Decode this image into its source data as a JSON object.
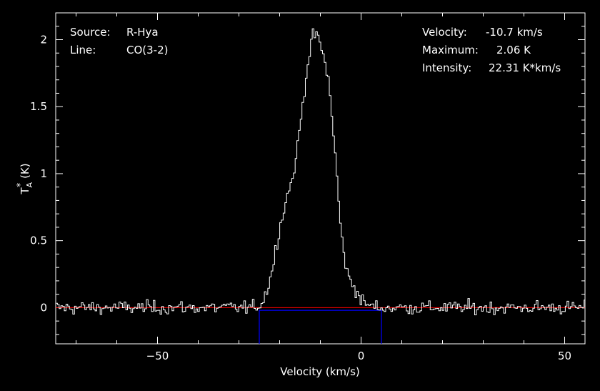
{
  "info_left": {
    "source_label": "Source:",
    "source_value": "R-Hya",
    "line_label": "Line:",
    "line_value": "CO(3-2)"
  },
  "info_right": {
    "velocity_label": "Velocity:",
    "velocity_value": "-10.7 km/s",
    "maximum_label": "Maximum:",
    "maximum_value": "2.06 K",
    "intensity_label": "Intensity:",
    "intensity_value": "22.31 K*km/s"
  },
  "chart_data": {
    "type": "line",
    "xlabel": "Velocity (km/s)",
    "ylabel_main": "T",
    "ylabel_sub": "A",
    "ylabel_sup": "*",
    "ylabel_unit": "(K)",
    "xlim": [
      -75,
      55
    ],
    "ylim": [
      -0.27,
      2.2
    ],
    "x_ticks": [
      -50,
      0,
      50
    ],
    "x_tick_labels": [
      "−50",
      "0",
      "50"
    ],
    "y_ticks": [
      0,
      0.5,
      1,
      1.5,
      2
    ],
    "y_tick_labels": [
      "0",
      "0.5",
      "1",
      "1.5",
      "2"
    ],
    "grid": false,
    "colors": {
      "spectrum": "#ffffff",
      "baseline": "#ff0000",
      "window": "#0000ff",
      "axes": "#ffffff",
      "background": "#000000"
    },
    "baseline": {
      "y": 0.0
    },
    "window": {
      "x_min": -25,
      "x_max": 5,
      "y": -0.02,
      "y_bottom": -0.27
    },
    "profile": {
      "center": -10.7,
      "peak": 2.06,
      "noise_rms": 0.035,
      "shape_x": [
        -26,
        -24,
        -22,
        -20,
        -18,
        -17,
        -16,
        -15,
        -14,
        -13,
        -12,
        -11,
        -10,
        -9,
        -8,
        -7,
        -6,
        -5,
        -4,
        -3,
        -2,
        -1,
        0,
        2,
        4
      ],
      "shape_y": [
        0.0,
        0.05,
        0.25,
        0.6,
        0.85,
        0.95,
        1.1,
        1.35,
        1.6,
        1.85,
        2.0,
        2.06,
        1.95,
        1.85,
        1.7,
        1.4,
        1.0,
        0.6,
        0.35,
        0.22,
        0.18,
        0.12,
        0.05,
        0.02,
        0.0
      ],
      "channel_width": 0.42
    }
  }
}
